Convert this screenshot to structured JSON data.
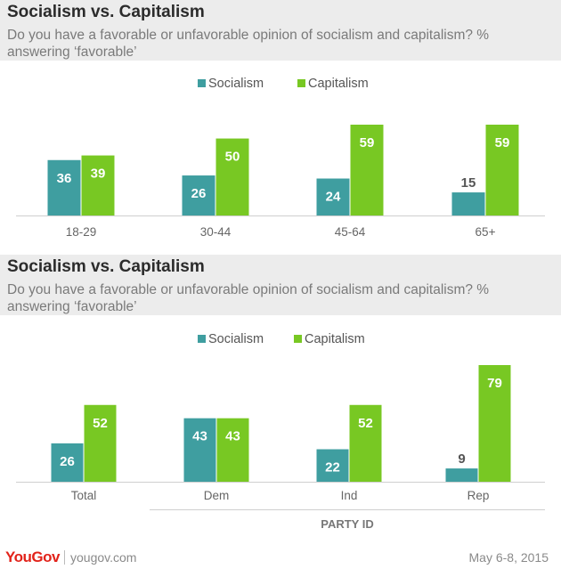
{
  "colors": {
    "socialism": "#3f9ea0",
    "capitalism": "#78c823",
    "axis": "#cfcfcf",
    "label": "#666666"
  },
  "chart_data": [
    {
      "type": "bar",
      "title": "Socialism vs. Capitalism",
      "subtitle": "Do you have a favorable or unfavorable opinion of socialism and capitalism? % answering ‘favorable’",
      "categories": [
        "18-29",
        "30-44",
        "45-64",
        "65+"
      ],
      "series": [
        {
          "name": "Socialism",
          "values": [
            36,
            26,
            24,
            15
          ]
        },
        {
          "name": "Capitalism",
          "values": [
            39,
            50,
            59,
            59
          ]
        }
      ],
      "legend_position": "top-center",
      "ylim": [
        0,
        59
      ],
      "grid": false,
      "group_label": ""
    },
    {
      "type": "bar",
      "title": "Socialism vs. Capitalism",
      "subtitle": "Do you have a favorable or unfavorable opinion of socialism and capitalism? % answering ‘favorable’",
      "categories": [
        "Total",
        "Dem",
        "Ind",
        "Rep"
      ],
      "series": [
        {
          "name": "Socialism",
          "values": [
            26,
            43,
            22,
            9
          ]
        },
        {
          "name": "Capitalism",
          "values": [
            52,
            43,
            52,
            79
          ]
        }
      ],
      "legend_position": "top-center",
      "ylim": [
        0,
        79
      ],
      "grid": false,
      "group_label": "PARTY ID"
    }
  ],
  "footer": {
    "logo": "YouGov",
    "site": "yougov.com",
    "date": "May 6-8, 2015"
  }
}
